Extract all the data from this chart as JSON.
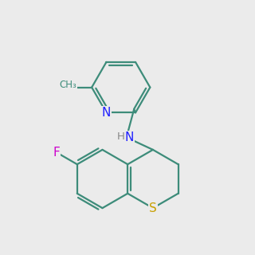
{
  "bg": "#ebebeb",
  "bond_color": "#3d8c7a",
  "bond_width": 1.6,
  "N_color": "#2020ff",
  "S_color": "#c8a000",
  "F_color": "#cc00cc",
  "H_color": "#888888",
  "label_bg": "#ebebeb",
  "label_fontsize": 10.5
}
